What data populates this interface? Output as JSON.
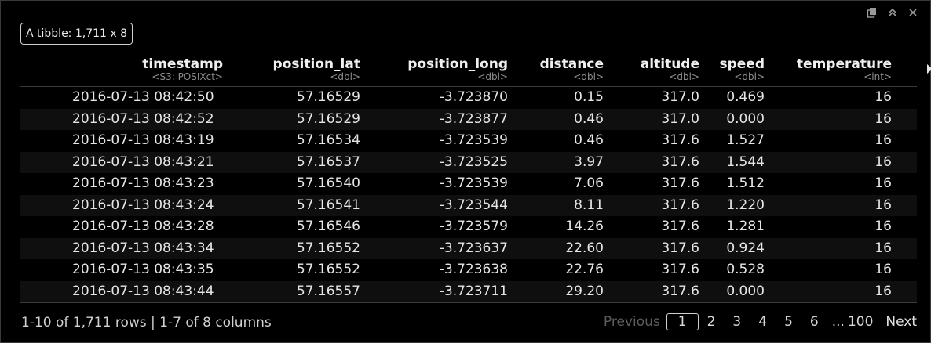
{
  "badge": "A tibble: 1,711 x 8",
  "columns": [
    {
      "name": "timestamp",
      "type": "<S3: POSIXct>"
    },
    {
      "name": "position_lat",
      "type": "<dbl>"
    },
    {
      "name": "position_long",
      "type": "<dbl>"
    },
    {
      "name": "distance",
      "type": "<dbl>"
    },
    {
      "name": "altitude",
      "type": "<dbl>"
    },
    {
      "name": "speed",
      "type": "<dbl>"
    },
    {
      "name": "temperature",
      "type": "<int>"
    }
  ],
  "rows": [
    [
      "2016-07-13 08:42:50",
      "57.16529",
      "-3.723870",
      "0.15",
      "317.0",
      "0.469",
      "16"
    ],
    [
      "2016-07-13 08:42:52",
      "57.16529",
      "-3.723877",
      "0.46",
      "317.0",
      "0.000",
      "16"
    ],
    [
      "2016-07-13 08:43:19",
      "57.16534",
      "-3.723539",
      "0.46",
      "317.6",
      "1.527",
      "16"
    ],
    [
      "2016-07-13 08:43:21",
      "57.16537",
      "-3.723525",
      "3.97",
      "317.6",
      "1.544",
      "16"
    ],
    [
      "2016-07-13 08:43:23",
      "57.16540",
      "-3.723539",
      "7.06",
      "317.6",
      "1.512",
      "16"
    ],
    [
      "2016-07-13 08:43:24",
      "57.16541",
      "-3.723544",
      "8.11",
      "317.6",
      "1.220",
      "16"
    ],
    [
      "2016-07-13 08:43:28",
      "57.16546",
      "-3.723579",
      "14.26",
      "317.6",
      "1.281",
      "16"
    ],
    [
      "2016-07-13 08:43:34",
      "57.16552",
      "-3.723637",
      "22.60",
      "317.6",
      "0.924",
      "16"
    ],
    [
      "2016-07-13 08:43:35",
      "57.16552",
      "-3.723638",
      "22.76",
      "317.6",
      "0.528",
      "16"
    ],
    [
      "2016-07-13 08:43:44",
      "57.16557",
      "-3.723711",
      "29.20",
      "317.6",
      "0.000",
      "16"
    ]
  ],
  "footer": {
    "info": "1-10 of 1,711 rows | 1-7 of 8 columns"
  },
  "pager": {
    "previous": "Previous",
    "pages": [
      "1",
      "2",
      "3",
      "4",
      "5",
      "6"
    ],
    "current": "1",
    "ellipsis": "...",
    "last": "100",
    "next": "Next"
  },
  "icons": {
    "copy": "copy-icon",
    "collapse": "collapse-icon",
    "close": "close-icon"
  }
}
